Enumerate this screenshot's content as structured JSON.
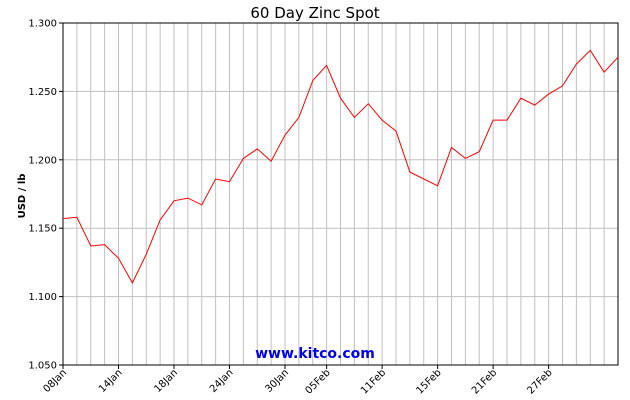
{
  "chart_data": {
    "type": "line",
    "title": "60 Day Zinc Spot",
    "ylabel": "USD / lb",
    "xlabel": "",
    "watermark": "www.kitco.com",
    "ylim": [
      1.05,
      1.3
    ],
    "y_ticks": [
      "1.050",
      "1.100",
      "1.150",
      "1.200",
      "1.250",
      "1.300"
    ],
    "x_tick_labels": [
      "08Jan",
      "14Jan",
      "18Jan",
      "24Jan",
      "30Jan",
      "05Feb",
      "11Feb",
      "15Feb",
      "21Feb",
      "27Feb"
    ],
    "x_tick_indices": [
      0,
      4,
      8,
      12,
      16,
      19,
      23,
      27,
      31,
      35
    ],
    "grid": true,
    "series": [
      {
        "color": "#ff0000",
        "values": [
          1.157,
          1.158,
          1.137,
          1.138,
          1.128,
          1.11,
          1.131,
          1.156,
          1.17,
          1.172,
          1.167,
          1.186,
          1.184,
          1.201,
          1.208,
          1.199,
          1.218,
          1.231,
          1.258,
          1.269,
          1.245,
          1.231,
          1.241,
          1.229,
          1.221,
          1.191,
          1.186,
          1.181,
          1.209,
          1.201,
          1.206,
          1.229,
          1.229,
          1.245,
          1.24,
          1.248,
          1.254,
          1.27,
          1.28,
          1.264,
          1.275
        ]
      }
    ]
  }
}
